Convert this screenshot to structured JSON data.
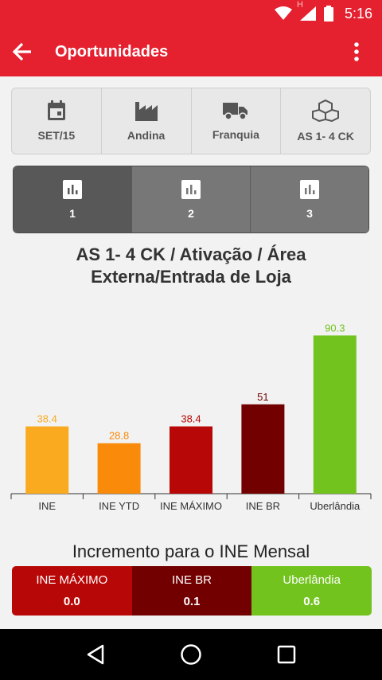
{
  "status_bar": {
    "time": "5:16",
    "network_letter": "H"
  },
  "app_bar": {
    "title": "Oportunidades"
  },
  "filters": [
    {
      "label": "SET/15",
      "icon": "calendar-icon"
    },
    {
      "label": "Andina",
      "icon": "factory-icon"
    },
    {
      "label": "Franquia",
      "icon": "truck-icon"
    },
    {
      "label": "AS 1- 4 CK",
      "icon": "boxes-icon"
    }
  ],
  "tabs": [
    {
      "label": "1",
      "icon": "bar-chart-icon",
      "active": true
    },
    {
      "label": "2",
      "icon": "bar-chart-icon",
      "active": false
    },
    {
      "label": "3",
      "icon": "bar-chart-icon",
      "active": false
    }
  ],
  "chart_title": "AS 1- 4 CK / Ativação / Área Externa/Entrada de Loja",
  "chart_data": {
    "type": "bar",
    "title": "AS 1- 4 CK / Ativação / Área Externa/Entrada de Loja",
    "categories": [
      "INE",
      "INE YTD",
      "INE MÁXIMO",
      "INE BR",
      "Uberlândia"
    ],
    "values": [
      38.4,
      28.8,
      38.4,
      51,
      90.3
    ],
    "value_labels": [
      "38.4",
      "28.8",
      "38.4",
      "51",
      "90.3"
    ],
    "colors": [
      "#f9aa1e",
      "#f98a0a",
      "#b80707",
      "#720000",
      "#72c31e"
    ],
    "ylim": [
      0,
      100
    ],
    "grid": false,
    "xlabel": "",
    "ylabel": ""
  },
  "increment": {
    "title": "Incremento para o INE Mensal",
    "cells": [
      {
        "label": "INE MÁXIMO",
        "value": "0.0",
        "color": "#b80707"
      },
      {
        "label": "INE BR",
        "value": "0.1",
        "color": "#720000"
      },
      {
        "label": "Uberlândia",
        "value": "0.6",
        "color": "#72c31e"
      }
    ]
  },
  "colors": {
    "primary": "#e5202f"
  }
}
